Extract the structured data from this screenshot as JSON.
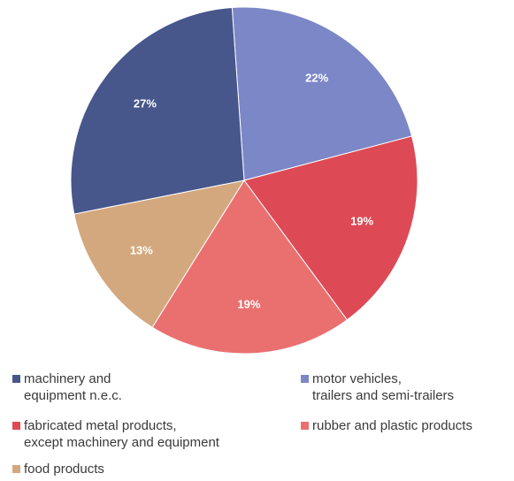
{
  "chart_data": {
    "type": "pie",
    "title": "",
    "slices": [
      {
        "label": "motor vehicles,\ntrailers and semi-trailers",
        "value": 22,
        "display": "22%",
        "color": "#7b87c6"
      },
      {
        "label": "fabricated metal products,\nexcept machinery and equipment",
        "value": 19,
        "display": "19%",
        "color": "#dd4a55"
      },
      {
        "label": "rubber and plastic products",
        "value": 19,
        "display": "19%",
        "color": "#ea7070"
      },
      {
        "label": "food products",
        "value": 13,
        "display": "13%",
        "color": "#d4a87e"
      },
      {
        "label": "machinery and\nequipment n.e.c.",
        "value": 27,
        "display": "27%",
        "color": "#47578c"
      }
    ],
    "legend_position": "bottom"
  },
  "legend": [
    {
      "label": "machinery and\nequipment n.e.c.",
      "color": "#47578c"
    },
    {
      "label": "motor vehicles,\ntrailers and semi-trailers",
      "color": "#7b87c6"
    },
    {
      "label": "fabricated metal products,\nexcept machinery and equipment",
      "color": "#dd4a55"
    },
    {
      "label": "rubber and plastic products",
      "color": "#ea7070"
    },
    {
      "label": "food products",
      "color": "#d4a87e"
    }
  ]
}
